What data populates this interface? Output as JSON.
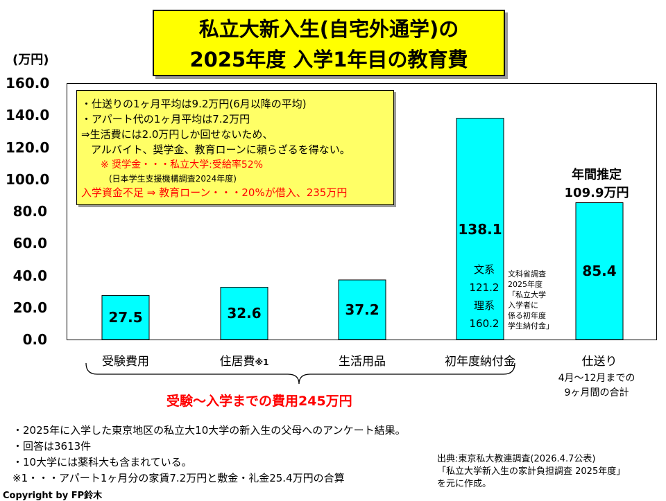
{
  "title": {
    "line1": "私立大新入生(自宅外通学)の",
    "line2": "2025年度 入学1年目の教育費"
  },
  "unit_label": "(万円)",
  "chart_data": {
    "type": "bar",
    "categories": [
      "受験費用",
      "住居費",
      "生活用品",
      "初年度納付金",
      "仕送り"
    ],
    "values": [
      27.5,
      32.6,
      37.2,
      138.1,
      85.4
    ],
    "value_labels": [
      "27.5",
      "32.6",
      "37.2",
      "138.1",
      "85.4"
    ],
    "ylim": [
      0,
      160
    ],
    "yticks": [
      "0.0",
      "20.0",
      "40.0",
      "60.0",
      "80.0",
      "100.0",
      "120.0",
      "140.0",
      "160.0"
    ],
    "bar_color": "#00ffff",
    "grid": false
  },
  "category_suffix": "※1",
  "note_box": {
    "line1": "・仕送りの1ヶ月平均は9.2万円(6月以降の平均)",
    "line2": "・アパート代の1ヶ月平均は7.2万円",
    "line3": "⇒生活費には2.0万円しか回せないため、",
    "line4": "アルバイト、奨学金、教育ローンに頼らざるを得ない。",
    "line5": "※ 奨学金・・・私立大学:受給率52%",
    "line6": "(日本学生支援機構調査2024年度)",
    "line7": "入学資金不足 ⇒ 教育ローン・・・20%が借入、235万円",
    "red_color": "#ff0000",
    "box_color": "#ffff66"
  },
  "bar4_detail": {
    "bun_label": "文系",
    "bun_value": "121.2",
    "ri_label": "理系",
    "ri_value": "160.2"
  },
  "survey_note": {
    "line1": "文科省調査",
    "line2": "2025年度",
    "line3": "「私立大学",
    "line4": "入学者に",
    "line5": "係る初年度",
    "line6": "学生納付金」"
  },
  "estimate": {
    "line1": "年間推定",
    "line2": "109.9万円"
  },
  "allowance_note": {
    "line1": "4月～12月までの",
    "line2": "9ヶ月間の合計"
  },
  "total_label": "受験～入学までの費用245万円",
  "footer_notes": [
    "・2025年に入学した東京地区の私立大10大学の新入生の父母へのアンケート結果。",
    "・回答は3613件",
    "・10大学には薬科大も含まれている。",
    "※1・・・アパート1ヶ月分の家賃7.2万円と敷金・礼金25.4万円の合算"
  ],
  "source": {
    "line1": "出典:東京私大教連調査(2026.4.7公表)",
    "line2": "「私立大学新入生の家計負担調査 2025年度」",
    "line3": "を元に作成。"
  },
  "copyright": "Copyright by FP鈴木"
}
